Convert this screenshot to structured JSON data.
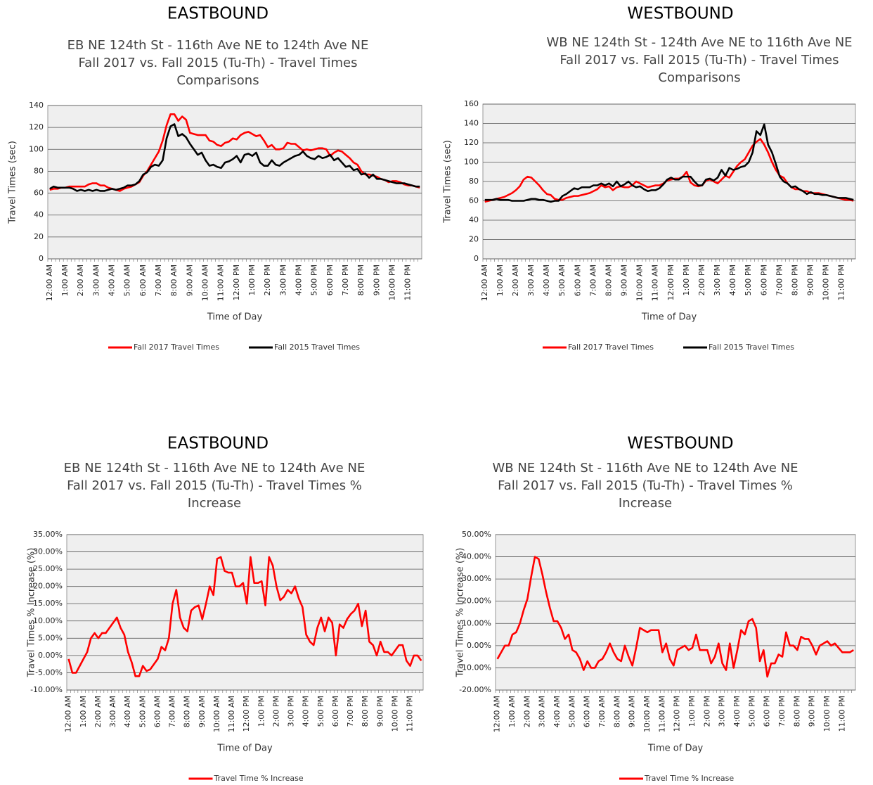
{
  "chart_data": [
    {
      "type": "line",
      "title": "EASTBOUND",
      "subtitle": [
        "EB NE 124th St - 116th Ave NE to 124th Ave NE",
        "Fall 2017 vs. Fall 2015 (Tu-Th) - Travel Times",
        "Comparisons"
      ],
      "x_label": "Time of Day",
      "y_label": "Travel Times (sec)",
      "categories": [
        "12:00 AM",
        null,
        null,
        null,
        "1:00 AM",
        null,
        null,
        null,
        "2:00 AM",
        null,
        null,
        null,
        "3:00 AM",
        null,
        null,
        null,
        "4:00 AM",
        null,
        null,
        null,
        "5:00 AM",
        null,
        null,
        null,
        "6:00 AM",
        null,
        null,
        null,
        "7:00 AM",
        null,
        null,
        null,
        "8:00 AM",
        null,
        null,
        null,
        "9:00 AM",
        null,
        null,
        null,
        "10:00 AM",
        null,
        null,
        null,
        "11:00 AM",
        null,
        null,
        null,
        "12:00 PM",
        null,
        null,
        null,
        "1:00 PM",
        null,
        null,
        null,
        "2:00 PM",
        null,
        null,
        null,
        "3:00 PM",
        null,
        null,
        null,
        "4:00 PM",
        null,
        null,
        null,
        "5:00 PM",
        null,
        null,
        null,
        "6:00 PM",
        null,
        null,
        null,
        "7:00 PM",
        null,
        null,
        null,
        "8:00 PM",
        null,
        null,
        null,
        "9:00 PM",
        null,
        null,
        null,
        "10:00 PM",
        null,
        null,
        null,
        "11:00 PM",
        null,
        null,
        null
      ],
      "series": [
        {
          "name": "Fall 2017 Travel Times",
          "color": "#ff0000",
          "values": [
            63,
            64,
            64,
            65,
            65,
            66,
            66,
            66,
            66,
            66,
            68,
            69,
            69,
            67,
            67,
            65,
            64,
            63,
            62,
            64,
            65,
            66,
            68,
            70,
            76,
            80,
            86,
            92,
            98,
            108,
            122,
            132,
            132,
            126,
            130,
            127,
            115,
            114,
            113,
            113,
            113,
            108,
            107,
            104,
            103,
            106,
            107,
            110,
            109,
            113,
            115,
            116,
            114,
            112,
            113,
            108,
            102,
            104,
            100,
            100,
            101,
            106,
            105,
            105,
            102,
            99,
            100,
            99,
            100,
            101,
            101,
            100,
            94,
            97,
            99,
            98,
            95,
            92,
            88,
            86,
            80,
            77,
            77,
            76,
            75,
            73,
            72,
            70,
            71,
            71,
            70,
            68,
            67,
            67,
            66,
            65
          ]
        },
        {
          "name": "Fall 2015 Travel Times",
          "color": "#000000",
          "values": [
            64,
            66,
            65,
            65,
            65,
            65,
            64,
            62,
            63,
            62,
            63,
            62,
            63,
            62,
            62,
            63,
            64,
            63,
            64,
            65,
            67,
            67,
            68,
            71,
            77,
            79,
            84,
            86,
            85,
            90,
            110,
            121,
            123,
            112,
            114,
            111,
            105,
            100,
            95,
            97,
            90,
            85,
            86,
            84,
            83,
            88,
            89,
            91,
            94,
            88,
            95,
            96,
            94,
            97,
            88,
            85,
            85,
            90,
            86,
            85,
            88,
            90,
            92,
            94,
            95,
            98,
            94,
            92,
            91,
            94,
            92,
            93,
            95,
            90,
            92,
            88,
            84,
            85,
            81,
            82,
            77,
            78,
            74,
            77,
            73,
            73,
            72,
            71,
            70,
            69,
            69,
            69,
            68,
            67,
            66,
            66
          ]
        }
      ],
      "ylim": [
        0,
        140
      ],
      "yticks": [
        0,
        20,
        40,
        60,
        80,
        100,
        120,
        140
      ],
      "grid": true
    },
    {
      "type": "line",
      "title": "WESTBOUND",
      "subtitle": [
        "WB NE 124th St - 124th Ave NE to 116th Ave NE",
        "Fall 2017 vs. Fall 2015 (Tu-Th) - Travel Times",
        "Comparisons"
      ],
      "x_label": "Time of Day",
      "y_label": "Travel Times (sec)",
      "categories": [
        "12:00 AM",
        null,
        null,
        null,
        "1:00 AM",
        null,
        null,
        null,
        "2:00 AM",
        null,
        null,
        null,
        "3:00 AM",
        null,
        null,
        null,
        "4:00 AM",
        null,
        null,
        null,
        "5:00 AM",
        null,
        null,
        null,
        "6:00 AM",
        null,
        null,
        null,
        "7:00 AM",
        null,
        null,
        null,
        "8:00 AM",
        null,
        null,
        null,
        "9:00 AM",
        null,
        null,
        null,
        "10:00 AM",
        null,
        null,
        null,
        "11:00 AM",
        null,
        null,
        null,
        "12:00 PM",
        null,
        null,
        null,
        "1:00 PM",
        null,
        null,
        null,
        "2:00 PM",
        null,
        null,
        null,
        "3:00 PM",
        null,
        null,
        null,
        "4:00 PM",
        null,
        null,
        null,
        "5:00 PM",
        null,
        null,
        null,
        "6:00 PM",
        null,
        null,
        null,
        "7:00 PM",
        null,
        null,
        null,
        "8:00 PM",
        null,
        null,
        null,
        "9:00 PM",
        null,
        null,
        null,
        "10:00 PM",
        null,
        null,
        null,
        "11:00 PM",
        null,
        null,
        null
      ],
      "series": [
        {
          "name": "Fall 2017 Travel Times",
          "color": "#ff0000",
          "values": [
            59,
            60,
            61,
            62,
            63,
            64,
            66,
            68,
            71,
            75,
            82,
            85,
            84,
            80,
            76,
            71,
            67,
            66,
            62,
            61,
            61,
            63,
            64,
            65,
            65,
            66,
            67,
            68,
            70,
            72,
            76,
            74,
            75,
            71,
            74,
            75,
            74,
            74,
            76,
            80,
            78,
            76,
            74,
            75,
            76,
            76,
            78,
            81,
            82,
            83,
            83,
            85,
            90,
            79,
            76,
            75,
            76,
            81,
            82,
            80,
            78,
            82,
            86,
            84,
            90,
            96,
            100,
            103,
            110,
            117,
            121,
            124,
            118,
            110,
            100,
            92,
            86,
            84,
            78,
            74,
            72,
            72,
            70,
            70,
            68,
            68,
            68,
            67,
            66,
            65,
            64,
            63,
            62,
            61,
            61,
            60
          ]
        },
        {
          "name": "Fall 2015 Travel Times",
          "color": "#000000",
          "values": [
            61,
            61,
            61,
            62,
            61,
            61,
            61,
            60,
            60,
            60,
            60,
            61,
            62,
            62,
            61,
            61,
            60,
            59,
            60,
            60,
            65,
            67,
            70,
            73,
            72,
            74,
            74,
            74,
            76,
            76,
            78,
            76,
            78,
            75,
            80,
            75,
            77,
            80,
            76,
            74,
            75,
            72,
            70,
            71,
            71,
            73,
            77,
            82,
            84,
            82,
            82,
            85,
            85,
            85,
            80,
            76,
            76,
            82,
            83,
            81,
            84,
            92,
            86,
            94,
            92,
            93,
            95,
            96,
            100,
            110,
            132,
            128,
            139,
            118,
            110,
            98,
            85,
            80,
            78,
            74,
            75,
            72,
            70,
            67,
            69,
            67,
            67,
            66,
            66,
            65,
            64,
            63,
            63,
            63,
            62,
            61
          ]
        }
      ],
      "ylim": [
        0,
        160
      ],
      "yticks": [
        0,
        20,
        40,
        60,
        80,
        100,
        120,
        140,
        160
      ],
      "grid": true
    },
    {
      "type": "line",
      "title": "EASTBOUND",
      "subtitle": [
        "EB NE 124th St - 116th Ave NE to 124th Ave NE",
        "Fall 2017 vs. Fall 2015 (Tu-Th) - Travel Times %",
        "Increase"
      ],
      "x_label": "Time of Day",
      "y_label": "Travel Times % Increase (%)",
      "categories": [
        "12:00 AM",
        null,
        null,
        null,
        "1:00 AM",
        null,
        null,
        null,
        "2:00 AM",
        null,
        null,
        null,
        "3:00 AM",
        null,
        null,
        null,
        "4:00 AM",
        null,
        null,
        null,
        "5:00 AM",
        null,
        null,
        null,
        "6:00 AM",
        null,
        null,
        null,
        "7:00 AM",
        null,
        null,
        null,
        "8:00 AM",
        null,
        null,
        null,
        "9:00 AM",
        null,
        null,
        null,
        "10:00 AM",
        null,
        null,
        null,
        "11:00 AM",
        null,
        null,
        null,
        "12:00 PM",
        null,
        null,
        null,
        "1:00 PM",
        null,
        null,
        null,
        "2:00 PM",
        null,
        null,
        null,
        "3:00 PM",
        null,
        null,
        null,
        "4:00 PM",
        null,
        null,
        null,
        "5:00 PM",
        null,
        null,
        null,
        "6:00 PM",
        null,
        null,
        null,
        "7:00 PM",
        null,
        null,
        null,
        "8:00 PM",
        null,
        null,
        null,
        "9:00 PM",
        null,
        null,
        null,
        "10:00 PM",
        null,
        null,
        null,
        "11:00 PM",
        null,
        null,
        null
      ],
      "series": [
        {
          "name": "Travel Time % Increase",
          "color": "#ff0000",
          "values": [
            -1,
            -5,
            -5,
            -3,
            -1,
            1,
            5,
            6.5,
            5,
            6.5,
            6.5,
            8,
            9.5,
            11,
            8,
            6,
            1,
            -2,
            -6,
            -6,
            -3,
            -4.5,
            -4,
            -2.5,
            -1,
            2.5,
            1.5,
            5,
            15,
            19,
            11,
            8,
            7,
            13,
            14,
            14.5,
            10.5,
            15,
            20,
            17.5,
            28,
            28.5,
            24.5,
            24,
            24,
            20,
            20,
            21,
            15,
            28.5,
            21,
            21,
            21.5,
            14.5,
            28.5,
            26,
            20,
            16,
            17,
            19,
            18,
            20,
            16.5,
            14,
            6,
            4,
            3,
            8,
            11,
            7,
            11,
            9.5,
            0,
            9,
            8,
            10.5,
            12,
            13,
            15,
            8.5,
            13,
            4,
            3,
            0,
            4,
            1,
            1,
            0,
            1.5,
            3,
            3,
            -1.5,
            -3,
            0,
            0,
            -1.5
          ]
        }
      ],
      "ylim": [
        -10,
        35
      ],
      "yticks": [
        {
          "value": -10,
          "label": "-10.00%"
        },
        {
          "value": -5,
          "label": "-5.00%"
        },
        {
          "value": 0,
          "label": "0.00%"
        },
        {
          "value": 5,
          "label": "5.00%"
        },
        {
          "value": 10,
          "label": "10.00%"
        },
        {
          "value": 15,
          "label": "15.00%"
        },
        {
          "value": 20,
          "label": "20.00%"
        },
        {
          "value": 25,
          "label": "25.00%"
        },
        {
          "value": 30,
          "label": "30.00%"
        },
        {
          "value": 35,
          "label": "35.00%"
        }
      ],
      "grid": true
    },
    {
      "type": "line",
      "title": "WESTBOUND",
      "subtitle": [
        "WB NE 124th St - 116th Ave NE to 124th Ave NE",
        "Fall 2017 vs. Fall 2015 (Tu-Th) - Travel Times %",
        "Increase"
      ],
      "x_label": "Time of Day",
      "y_label": "Travel Times % Increase (%)",
      "categories": [
        "12:00 AM",
        null,
        null,
        null,
        "1:00 AM",
        null,
        null,
        null,
        "2:00 AM",
        null,
        null,
        null,
        "3:00 AM",
        null,
        null,
        null,
        "4:00 AM",
        null,
        null,
        null,
        "5:00 AM",
        null,
        null,
        null,
        "6:00 AM",
        null,
        null,
        null,
        "7:00 AM",
        null,
        null,
        null,
        "8:00 AM",
        null,
        null,
        null,
        "9:00 AM",
        null,
        null,
        null,
        "10:00 AM",
        null,
        null,
        null,
        "11:00 AM",
        null,
        null,
        null,
        "12:00 PM",
        null,
        null,
        null,
        "1:00 PM",
        null,
        null,
        null,
        "2:00 PM",
        null,
        null,
        null,
        "3:00 PM",
        null,
        null,
        null,
        "4:00 PM",
        null,
        null,
        null,
        "5:00 PM",
        null,
        null,
        null,
        "6:00 PM",
        null,
        null,
        null,
        "7:00 PM",
        null,
        null,
        null,
        "8:00 PM",
        null,
        null,
        null,
        "9:00 PM",
        null,
        null,
        null,
        "10:00 PM",
        null,
        null,
        null,
        "11:00 PM",
        null,
        null,
        null
      ],
      "series": [
        {
          "name": "Travel Time % Increase",
          "color": "#ff0000",
          "values": [
            -6,
            -3,
            0,
            0,
            5,
            6,
            10,
            16,
            21,
            31,
            40,
            39,
            32,
            24,
            17,
            11,
            11,
            8,
            3,
            5,
            -2,
            -3,
            -6,
            -11,
            -7,
            -10,
            -10,
            -7,
            -6,
            -3,
            1,
            -3,
            -6,
            -7,
            0,
            -5,
            -9,
            -1,
            8,
            7,
            6,
            7,
            7,
            7,
            -3,
            1,
            -6,
            -9,
            -2,
            -1,
            0,
            -2,
            -1,
            5,
            -2,
            -2,
            -2,
            -8,
            -5,
            1,
            -8,
            -11,
            1,
            -10,
            -2,
            7,
            5,
            11,
            12,
            8,
            -7,
            -2,
            -14,
            -8,
            -8,
            -4,
            -5,
            6,
            0,
            0,
            -2,
            4,
            3,
            3,
            0,
            -4,
            0,
            1,
            2,
            0,
            1,
            -1,
            -3,
            -3,
            -3,
            -2
          ]
        }
      ],
      "ylim": [
        -20,
        50
      ],
      "yticks": [
        {
          "value": -20,
          "label": "-20.00%"
        },
        {
          "value": -10,
          "label": "-10.00%"
        },
        {
          "value": 0,
          "label": "0.00%"
        },
        {
          "value": 10,
          "label": "10.00%"
        },
        {
          "value": 20,
          "label": "20.00%"
        },
        {
          "value": 30,
          "label": "30.00%"
        },
        {
          "value": 40,
          "label": "40.00%"
        },
        {
          "value": 50,
          "label": "50.00%"
        }
      ],
      "grid": true
    }
  ]
}
